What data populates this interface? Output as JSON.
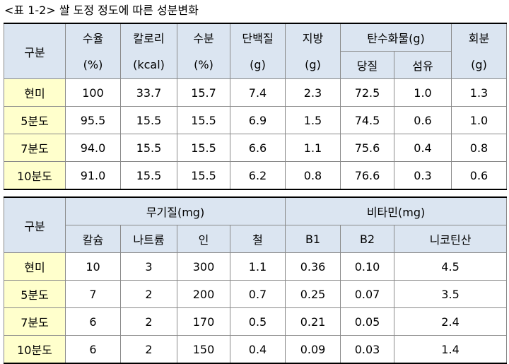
{
  "title": "<표 1-2> 쌀 도정 정도에 따른 성분변화",
  "table1": {
    "header_top": [
      "구분",
      "수율",
      "칼로리",
      "수분",
      "단백질",
      "지방",
      "탄수화물(g)",
      "회분"
    ],
    "header_bottom": [
      "(%)",
      "(kcal)",
      "(%)",
      "(g)",
      "(g)",
      "당질",
      "섬유",
      "(g)"
    ],
    "rows": [
      [
        "현미",
        "100",
        "33.7",
        "15.7",
        "7.4",
        "2.3",
        "72.5",
        "1.0",
        "1.3"
      ],
      [
        "5분도",
        "95.5",
        "15.5",
        "15.5",
        "6.9",
        "1.5",
        "74.5",
        "0.6",
        "1.0"
      ],
      [
        "7분도",
        "94.0",
        "15.5",
        "15.5",
        "6.6",
        "1.1",
        "75.6",
        "0.4",
        "0.8"
      ],
      [
        "10분도",
        "91.0",
        "15.5",
        "15.5",
        "6.2",
        "0.8",
        "76.6",
        "0.3",
        "0.6"
      ]
    ]
  },
  "table2": {
    "header_top": [
      "구분",
      "무기질(mg)",
      "비타민(mg)"
    ],
    "header_bottom": [
      "칼슘",
      "나트륨",
      "인",
      "철",
      "B1",
      "B2",
      "니코틴산"
    ],
    "rows": [
      [
        "현미",
        "10",
        "3",
        "300",
        "1.1",
        "0.36",
        "0.10",
        "4.5"
      ],
      [
        "5분도",
        "7",
        "2",
        "200",
        "0.7",
        "0.25",
        "0.07",
        "3.5"
      ],
      [
        "7분도",
        "6",
        "2",
        "170",
        "0.5",
        "0.21",
        "0.05",
        "2.4"
      ],
      [
        "10분도",
        "6",
        "2",
        "150",
        "0.4",
        "0.09",
        "0.03",
        "1.4"
      ]
    ]
  }
}
